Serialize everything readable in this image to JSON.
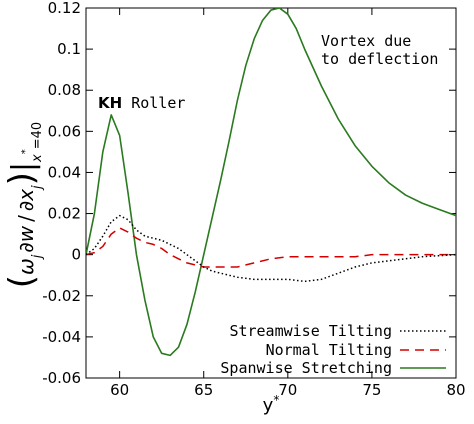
{
  "chart_data": {
    "type": "line",
    "title": "",
    "xlabel": "y*",
    "ylabel": "(ω_j ∂w / ∂x_j)|x*=40",
    "xlim": [
      58,
      80
    ],
    "ylim": [
      -0.06,
      0.12
    ],
    "xticks": [
      {
        "value": 60,
        "label": "60"
      },
      {
        "value": 65,
        "label": "65"
      },
      {
        "value": 70,
        "label": "70"
      },
      {
        "value": 75,
        "label": "75"
      },
      {
        "value": 80,
        "label": "80"
      }
    ],
    "yticks": [
      {
        "value": -0.06,
        "label": "-0.06"
      },
      {
        "value": -0.04,
        "label": "-0.04"
      },
      {
        "value": -0.02,
        "label": "-0.02"
      },
      {
        "value": 0,
        "label": "0"
      },
      {
        "value": 0.02,
        "label": "0.02"
      },
      {
        "value": 0.04,
        "label": "0.04"
      },
      {
        "value": 0.06,
        "label": "0.06"
      },
      {
        "value": 0.08,
        "label": "0.08"
      },
      {
        "value": 0.1,
        "label": "0.1"
      },
      {
        "value": 0.12,
        "label": "0.12"
      }
    ],
    "grid": false,
    "legend_position": "bottom-right",
    "annotations": {
      "kh_strong": "KH",
      "kh_rest": " Roller",
      "vortex_line1": "Vortex due",
      "vortex_line2": "to deflection"
    },
    "series": [
      {
        "name": "Streamwise Tilting",
        "color": "#000000",
        "dash": "dotted",
        "points": [
          [
            58,
            0.0
          ],
          [
            58.5,
            0.003
          ],
          [
            59,
            0.009
          ],
          [
            59.5,
            0.016
          ],
          [
            60,
            0.019
          ],
          [
            60.5,
            0.017
          ],
          [
            61,
            0.012
          ],
          [
            61.5,
            0.009
          ],
          [
            62,
            0.008
          ],
          [
            62.5,
            0.007
          ],
          [
            63,
            0.005
          ],
          [
            63.5,
            0.003
          ],
          [
            64,
            0.0
          ],
          [
            64.5,
            -0.003
          ],
          [
            65,
            -0.006
          ],
          [
            65.5,
            -0.008
          ],
          [
            66,
            -0.009
          ],
          [
            67,
            -0.011
          ],
          [
            68,
            -0.012
          ],
          [
            69,
            -0.012
          ],
          [
            70,
            -0.012
          ],
          [
            71,
            -0.013
          ],
          [
            72,
            -0.012
          ],
          [
            73,
            -0.009
          ],
          [
            74,
            -0.006
          ],
          [
            75,
            -0.004
          ],
          [
            76,
            -0.003
          ],
          [
            77,
            -0.002
          ],
          [
            78,
            -0.001
          ],
          [
            79,
            -0.0005
          ],
          [
            80,
            0.0
          ]
        ]
      },
      {
        "name": "Normal Tilting",
        "color": "#d40000",
        "dash": "dashed",
        "points": [
          [
            58,
            0.0
          ],
          [
            58.5,
            0.001
          ],
          [
            59,
            0.004
          ],
          [
            59.5,
            0.01
          ],
          [
            60,
            0.013
          ],
          [
            60.5,
            0.011
          ],
          [
            61,
            0.008
          ],
          [
            61.5,
            0.006
          ],
          [
            62,
            0.005
          ],
          [
            62.5,
            0.003
          ],
          [
            63,
            0.0
          ],
          [
            63.5,
            -0.002
          ],
          [
            64,
            -0.004
          ],
          [
            65,
            -0.006
          ],
          [
            66,
            -0.006
          ],
          [
            67,
            -0.006
          ],
          [
            68,
            -0.004
          ],
          [
            69,
            -0.002
          ],
          [
            70,
            -0.001
          ],
          [
            71,
            -0.001
          ],
          [
            72,
            -0.001
          ],
          [
            73,
            -0.001
          ],
          [
            74,
            -0.001
          ],
          [
            75,
            0.0
          ],
          [
            76,
            0.0
          ],
          [
            77,
            0.0
          ],
          [
            78,
            0.0
          ],
          [
            79,
            0.0
          ],
          [
            80,
            0.0
          ]
        ]
      },
      {
        "name": "Spanwise Stretching",
        "color": "#2a7a1f",
        "dash": "solid",
        "points": [
          [
            58,
            0.0
          ],
          [
            58.5,
            0.02
          ],
          [
            59,
            0.05
          ],
          [
            59.5,
            0.068
          ],
          [
            60,
            0.058
          ],
          [
            60.5,
            0.03
          ],
          [
            61,
            0.0
          ],
          [
            61.5,
            -0.022
          ],
          [
            62,
            -0.04
          ],
          [
            62.5,
            -0.048
          ],
          [
            63,
            -0.049
          ],
          [
            63.5,
            -0.045
          ],
          [
            64,
            -0.034
          ],
          [
            64.5,
            -0.018
          ],
          [
            65,
            0.0
          ],
          [
            65.5,
            0.018
          ],
          [
            66,
            0.036
          ],
          [
            66.5,
            0.055
          ],
          [
            67,
            0.075
          ],
          [
            67.5,
            0.092
          ],
          [
            68,
            0.105
          ],
          [
            68.5,
            0.114
          ],
          [
            69,
            0.119
          ],
          [
            69.5,
            0.12
          ],
          [
            70,
            0.117
          ],
          [
            70.5,
            0.11
          ],
          [
            71,
            0.1
          ],
          [
            72,
            0.082
          ],
          [
            73,
            0.066
          ],
          [
            74,
            0.053
          ],
          [
            75,
            0.043
          ],
          [
            76,
            0.035
          ],
          [
            77,
            0.029
          ],
          [
            78,
            0.025
          ],
          [
            79,
            0.022
          ],
          [
            80,
            0.019
          ]
        ]
      }
    ]
  }
}
